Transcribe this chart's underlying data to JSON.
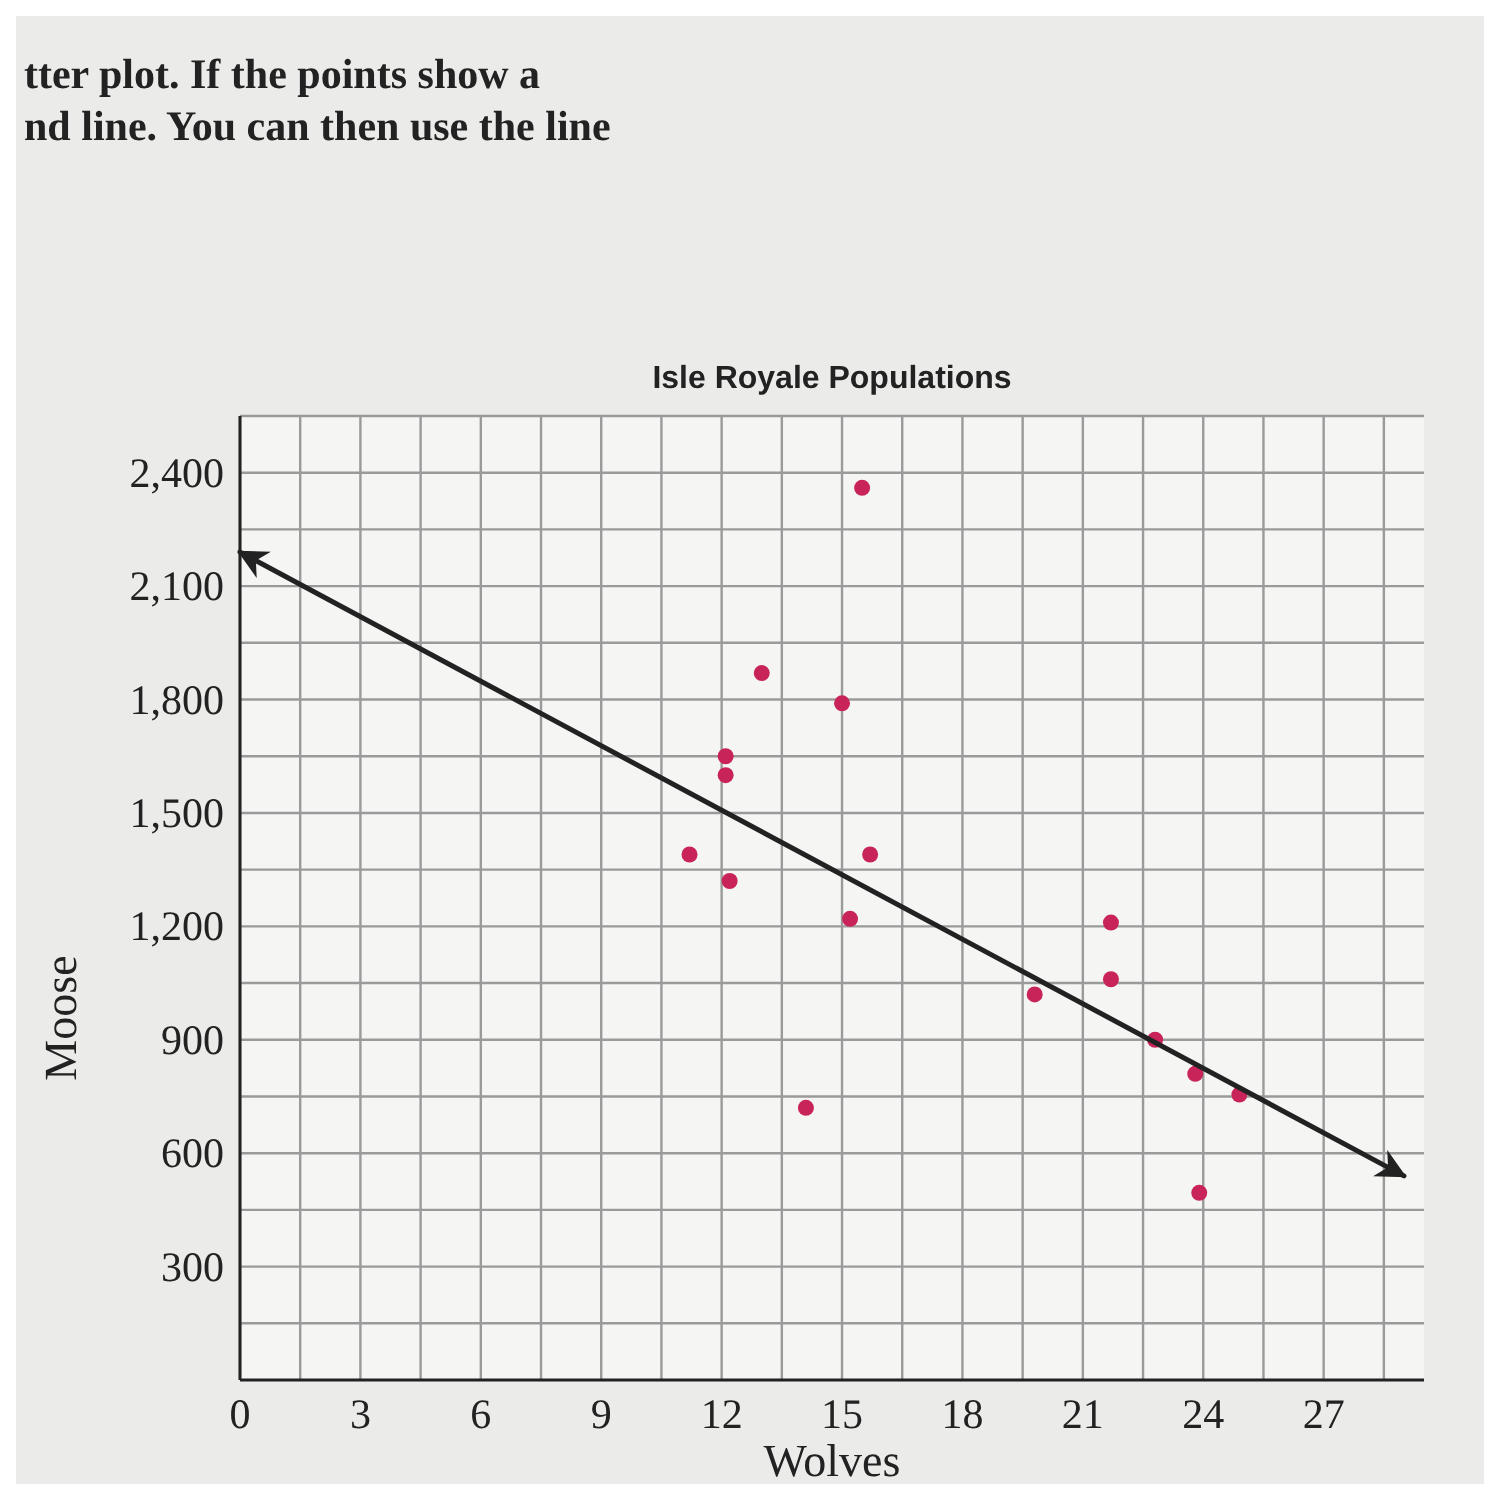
{
  "chart_data": {
    "type": "scatter",
    "title": "Isle Royale Populations",
    "xlabel": "Wolves",
    "ylabel": "Moose",
    "annotations": [
      "tter plot. If the points show a",
      "nd line. You can then use the line"
    ],
    "xlim": [
      0,
      29.5
    ],
    "ylim": [
      0,
      2550
    ],
    "xticks": [
      0,
      {
        "value": 1.5,
        "label": null
      },
      3,
      {
        "value": 4.5,
        "label": null
      },
      6,
      {
        "value": 7.5,
        "label": null
      },
      9,
      {
        "value": 10.5,
        "label": null
      },
      12,
      {
        "value": 13.5,
        "label": null
      },
      15,
      {
        "value": 16.5,
        "label": null
      },
      18,
      {
        "value": 19.5,
        "label": null
      },
      21,
      {
        "value": 22.5,
        "label": null
      },
      24,
      {
        "value": 25.5,
        "label": null
      },
      27,
      {
        "value": 28.5,
        "label": null
      }
    ],
    "yticks": [
      {
        "value": 150,
        "label": null
      },
      300,
      {
        "value": 450,
        "label": null
      },
      600,
      {
        "value": 750,
        "label": null
      },
      900,
      {
        "value": 1050,
        "label": null
      },
      {
        "value": 1200,
        "label": "1,200"
      },
      {
        "value": 1350,
        "label": null
      },
      {
        "value": 1500,
        "label": "1,500"
      },
      {
        "value": 1650,
        "label": null
      },
      {
        "value": 1800,
        "label": "1,800"
      },
      {
        "value": 1950,
        "label": null
      },
      {
        "value": 2100,
        "label": "2,100"
      },
      {
        "value": 2250,
        "label": null
      },
      {
        "value": 2400,
        "label": "2,400"
      },
      {
        "value": 2550,
        "label": null
      }
    ],
    "grid": true,
    "series": [
      {
        "marker": "circle",
        "color": "#c8245a",
        "x": [
          15.5,
          13,
          15,
          12.1,
          12.1,
          11.2,
          15.7,
          12.2,
          15.2,
          21.7,
          21.7,
          19.8,
          22.8,
          23.8,
          24.9,
          14.1,
          23.9
        ],
        "values": [
          2360,
          1870,
          1790,
          1650,
          1600,
          1390,
          1390,
          1320,
          1220,
          1210,
          1060,
          1020,
          900,
          810,
          755,
          720,
          495
        ]
      },
      {
        "type": "line",
        "color": "#222222",
        "x": [
          0,
          29
        ],
        "values": [
          2190,
          540
        ]
      }
    ]
  }
}
